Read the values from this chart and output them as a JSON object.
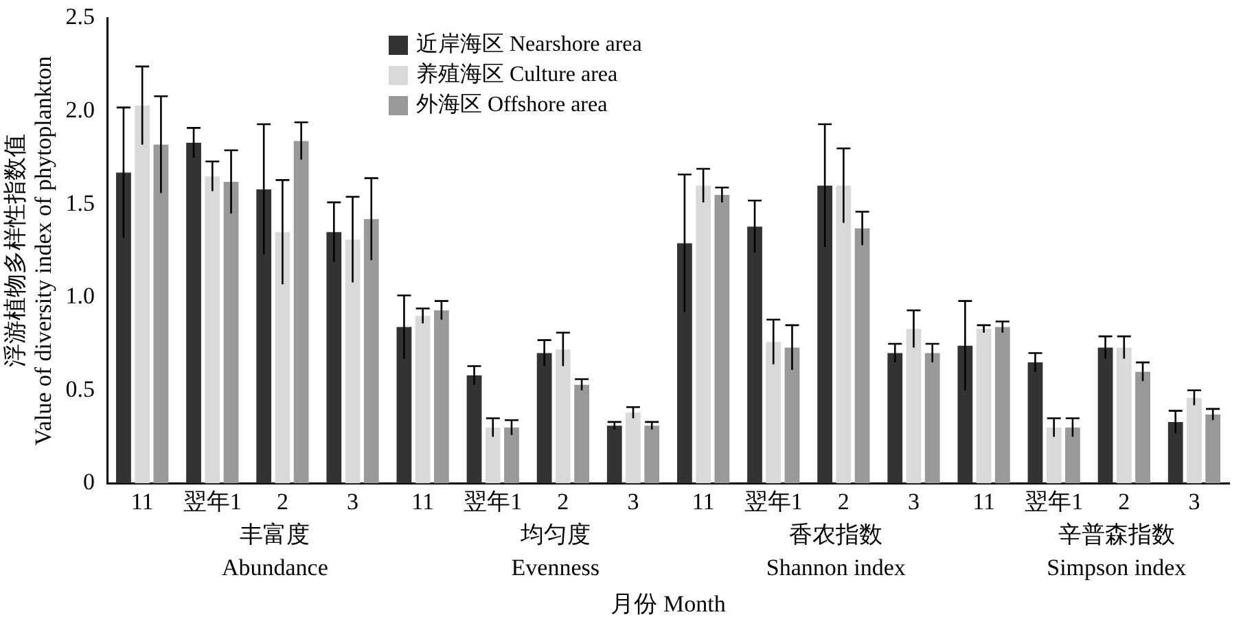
{
  "chart_data": {
    "type": "bar",
    "xlabel": "月份 Month",
    "ylabel": "浮游植物多样性指数值\nValue of diversity index of phytoplankton",
    "categories": [
      "11",
      "翌年1",
      "2",
      "3",
      "11",
      "翌年1",
      "2",
      "3",
      "11",
      "翌年1",
      "2",
      "3",
      "11",
      "翌年1",
      "2",
      "3"
    ],
    "series": [
      {
        "name": "近岸海区 Nearshore area",
        "color": "#333333",
        "values": [
          1.67,
          1.83,
          1.58,
          1.35,
          0.84,
          0.58,
          0.7,
          0.31,
          1.29,
          1.38,
          1.6,
          0.7,
          0.74,
          0.65,
          0.73,
          0.33
        ],
        "errors": [
          0.35,
          0.08,
          0.35,
          0.16,
          0.17,
          0.05,
          0.07,
          0.02,
          0.37,
          0.14,
          0.33,
          0.05,
          0.24,
          0.05,
          0.06,
          0.06
        ]
      },
      {
        "name": "养殖海区 Culture area",
        "color": "#d9d9d9",
        "values": [
          2.03,
          1.65,
          1.35,
          1.31,
          0.9,
          0.3,
          0.72,
          0.38,
          1.6,
          0.76,
          1.6,
          0.83,
          0.83,
          0.3,
          0.73,
          0.46
        ],
        "errors": [
          0.21,
          0.08,
          0.28,
          0.23,
          0.04,
          0.05,
          0.09,
          0.03,
          0.09,
          0.12,
          0.2,
          0.1,
          0.02,
          0.05,
          0.06,
          0.04
        ]
      },
      {
        "name": "外海区 Offshore area",
        "color": "#999999",
        "values": [
          1.82,
          1.62,
          1.84,
          1.42,
          0.93,
          0.3,
          0.53,
          0.31,
          1.55,
          0.73,
          1.37,
          0.7,
          0.84,
          0.3,
          0.6,
          0.37
        ],
        "errors": [
          0.26,
          0.17,
          0.1,
          0.22,
          0.05,
          0.04,
          0.03,
          0.02,
          0.04,
          0.12,
          0.09,
          0.05,
          0.03,
          0.05,
          0.05,
          0.03
        ]
      }
    ],
    "annotations": [
      "丰富度\nAbundance",
      "均匀度\nEvenness",
      "香农指数\nShannon index",
      "辛普森指数\nSimpson index"
    ],
    "ylim": [
      0,
      2.5
    ],
    "yticks": [
      0,
      0.5,
      {
        "value": 1,
        "label": "1.0"
      },
      {
        "value": 1.5,
        "label": "1.5"
      },
      {
        "value": 2,
        "label": "2.0"
      },
      {
        "value": 2.5,
        "label": "2.5"
      }
    ],
    "grid": false,
    "legend": "top"
  }
}
